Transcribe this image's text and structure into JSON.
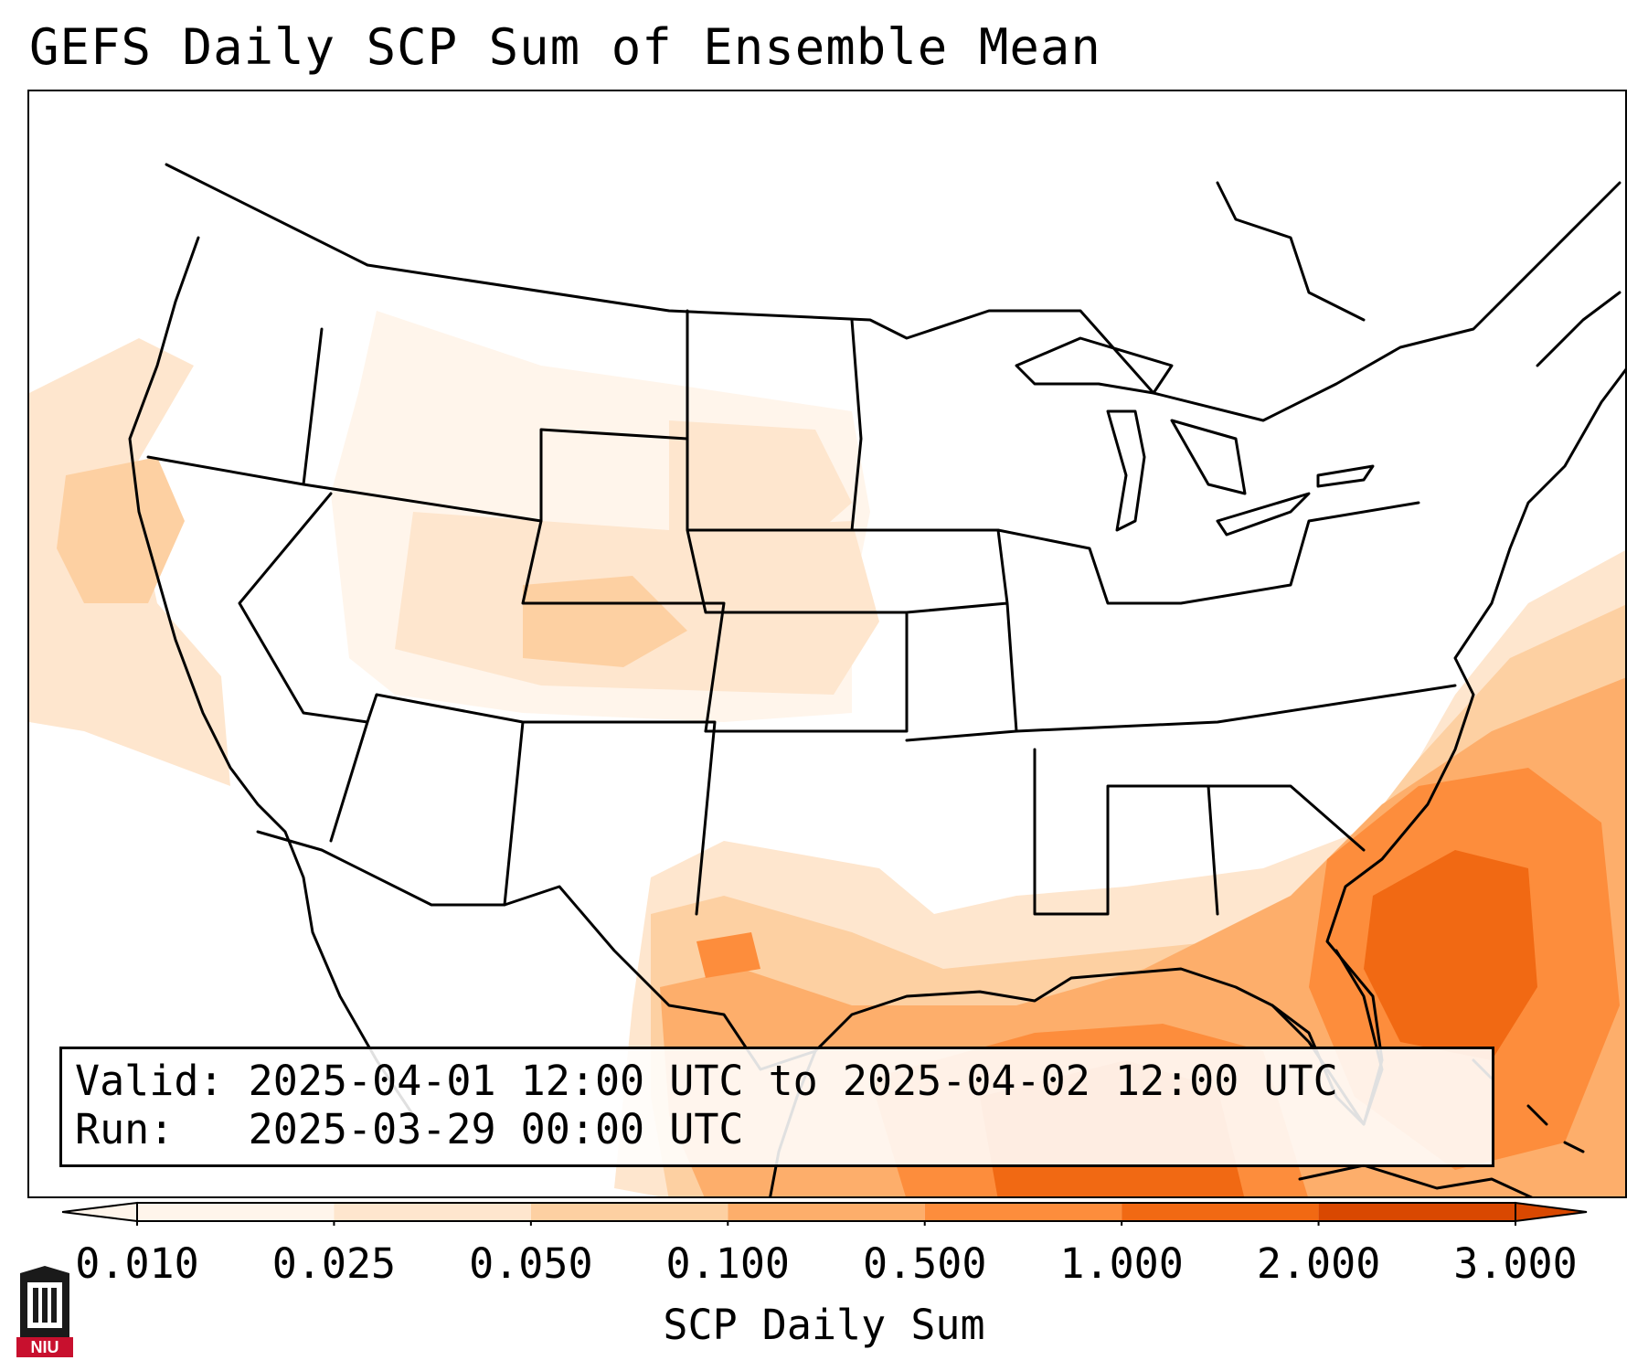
{
  "title": "GEFS Daily SCP Sum of Ensemble Mean",
  "info": {
    "valid_label": "Valid:",
    "valid_value": "2025-04-01 12:00 UTC to 2025-04-02 12:00 UTC",
    "run_label": "Run:",
    "run_value": "2025-03-29 00:00 UTC"
  },
  "colorbar": {
    "label": "SCP Daily Sum",
    "ticks": [
      "0.010",
      "0.025",
      "0.050",
      "0.100",
      "0.500",
      "1.000",
      "2.000",
      "3.000"
    ],
    "colors": [
      "#fff5eb",
      "#fee6ce",
      "#fdd0a2",
      "#fdae6b",
      "#fd8d3c",
      "#f16913",
      "#d94801"
    ],
    "extend": "both"
  },
  "logo": {
    "text": "NIU"
  },
  "colors": {
    "lvl1": "#fff5eb",
    "lvl2": "#fee6ce",
    "lvl3": "#fdd0a2",
    "lvl4": "#fdae6b",
    "lvl5": "#fd8d3c",
    "lvl6": "#f16913",
    "lvl7": "#d94801"
  }
}
